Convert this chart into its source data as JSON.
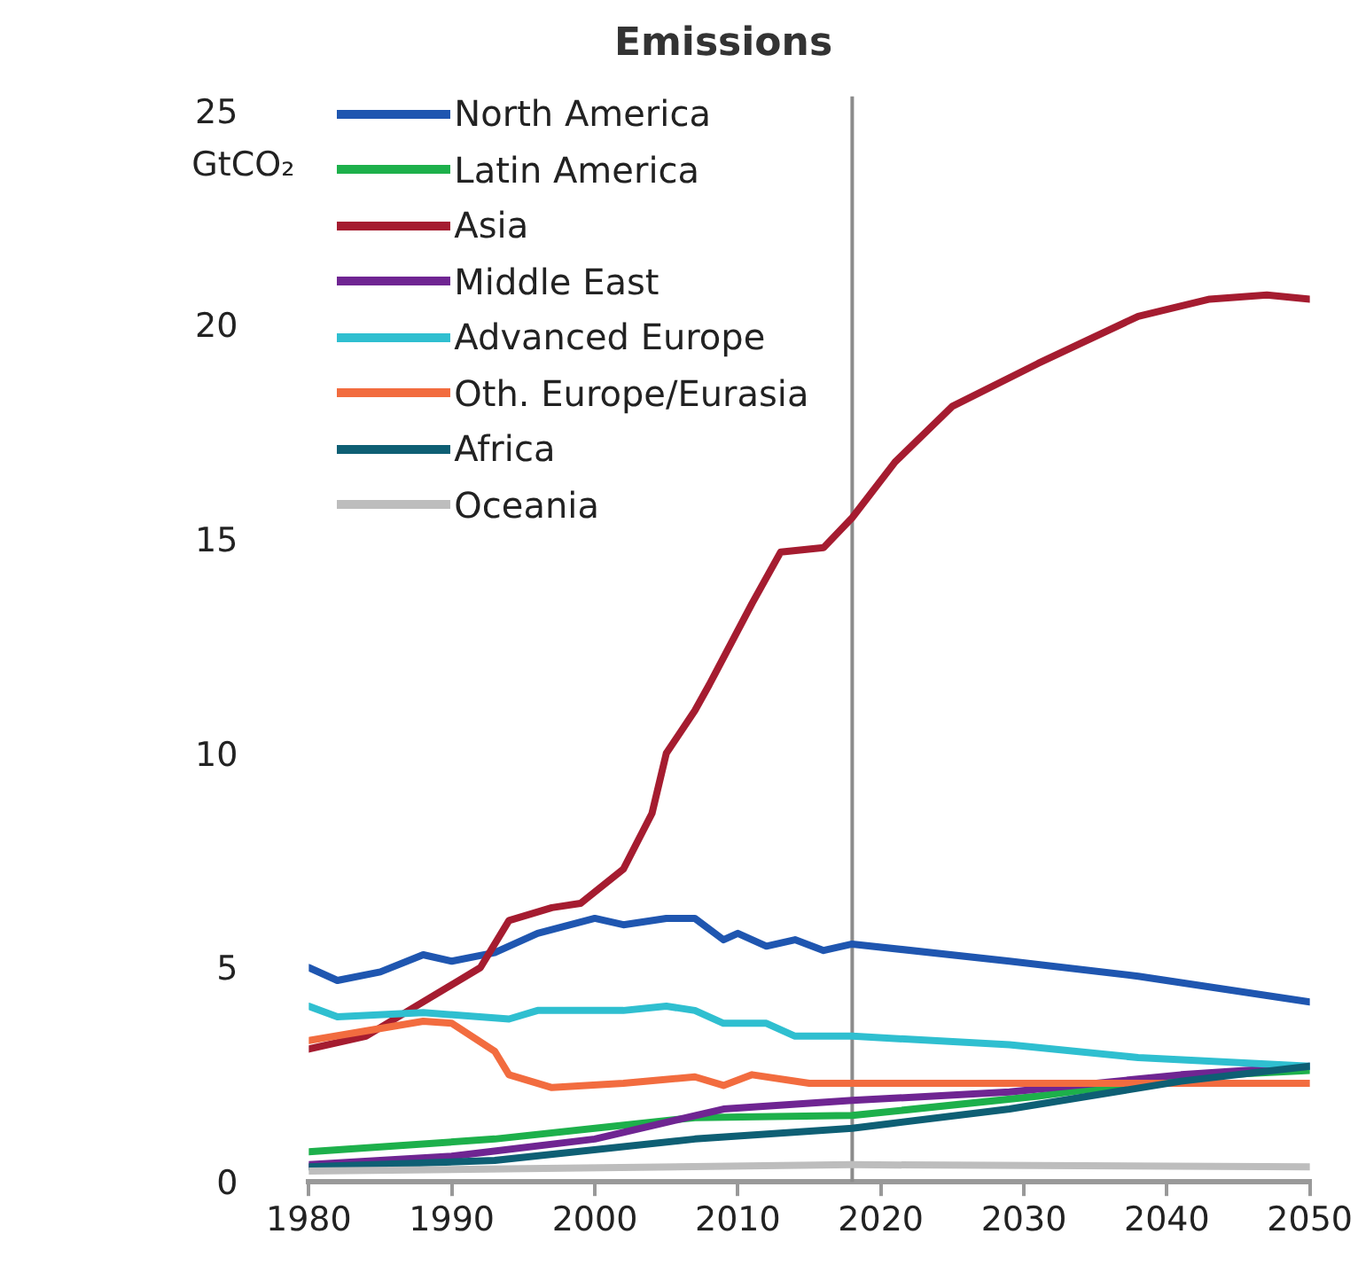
{
  "chart_data": {
    "type": "line",
    "title": "Emissions",
    "ylabel": "GtCO₂",
    "xlim": [
      1980,
      2050
    ],
    "xticks": [
      1980,
      1990,
      2000,
      2010,
      2020,
      2030,
      2040,
      2050
    ],
    "ylim": [
      0,
      25
    ],
    "yticks": [
      0,
      5,
      10,
      15,
      20,
      25
    ],
    "grid": false,
    "legend": "top left",
    "marker": "none",
    "line_style": "solid",
    "ref_lines": [
      {
        "axis": "x",
        "value": 2018,
        "color": "#8c8c8c"
      }
    ],
    "series": [
      {
        "name": "North America",
        "color": "#1f56b0",
        "x": [
          1980,
          1982,
          1985,
          1988,
          1990,
          1993,
          1996,
          2000,
          2002,
          2005,
          2007,
          2009,
          2010,
          2012,
          2014,
          2016,
          2018,
          2029,
          2038,
          2050
        ],
        "values": [
          5.0,
          4.7,
          4.9,
          5.3,
          5.15,
          5.35,
          5.8,
          6.15,
          6.0,
          6.15,
          6.15,
          5.65,
          5.8,
          5.5,
          5.65,
          5.4,
          5.55,
          5.15,
          4.8,
          4.2
        ]
      },
      {
        "name": "Latin America",
        "color": "#1db04b",
        "x": [
          1980,
          1993,
          2007,
          2018,
          2031,
          2041,
          2050
        ],
        "values": [
          0.7,
          1.0,
          1.5,
          1.55,
          2.0,
          2.45,
          2.6
        ]
      },
      {
        "name": "Asia",
        "color": "#a51c30",
        "x": [
          1980,
          1984,
          1988,
          1992,
          1994,
          1997,
          1999,
          2002,
          2004,
          2005,
          2007,
          2008,
          2011,
          2013,
          2016,
          2018,
          2021,
          2025,
          2031,
          2038,
          2043,
          2047,
          2050
        ],
        "values": [
          3.1,
          3.4,
          4.2,
          5.0,
          6.1,
          6.4,
          6.5,
          7.3,
          8.6,
          10.0,
          11.0,
          11.6,
          13.5,
          14.7,
          14.8,
          15.5,
          16.8,
          18.1,
          19.1,
          20.2,
          20.6,
          20.7,
          20.6
        ]
      },
      {
        "name": "Middle East",
        "color": "#6f2592",
        "x": [
          1980,
          1990,
          2000,
          2009,
          2018,
          2029,
          2041,
          2050
        ],
        "values": [
          0.4,
          0.6,
          1.0,
          1.7,
          1.9,
          2.1,
          2.5,
          2.7
        ]
      },
      {
        "name": "Advanced Europe",
        "color": "#2fbfd0",
        "x": [
          1980,
          1982,
          1988,
          1994,
          1996,
          2002,
          2005,
          2007,
          2009,
          2012,
          2014,
          2018,
          2029,
          2038,
          2050
        ],
        "values": [
          4.1,
          3.85,
          3.95,
          3.8,
          4.0,
          4.0,
          4.1,
          4.0,
          3.7,
          3.7,
          3.4,
          3.4,
          3.2,
          2.9,
          2.7
        ]
      },
      {
        "name": "Oth. Europe/Eurasia",
        "color": "#f26c3f",
        "x": [
          1980,
          1988,
          1990,
          1993,
          1994,
          1997,
          2002,
          2007,
          2009,
          2011,
          2015,
          2018,
          2031,
          2050
        ],
        "values": [
          3.3,
          3.75,
          3.7,
          3.05,
          2.5,
          2.2,
          2.3,
          2.45,
          2.25,
          2.5,
          2.3,
          2.3,
          2.3,
          2.3
        ]
      },
      {
        "name": "Africa",
        "color": "#0e5f74",
        "x": [
          1980,
          1993,
          2007,
          2018,
          2029,
          2041,
          2050
        ],
        "values": [
          0.35,
          0.5,
          1.0,
          1.25,
          1.7,
          2.35,
          2.7
        ]
      },
      {
        "name": "Oceania",
        "color": "#bdbdbd",
        "x": [
          1980,
          2018,
          2050
        ],
        "values": [
          0.25,
          0.4,
          0.35
        ]
      }
    ]
  }
}
